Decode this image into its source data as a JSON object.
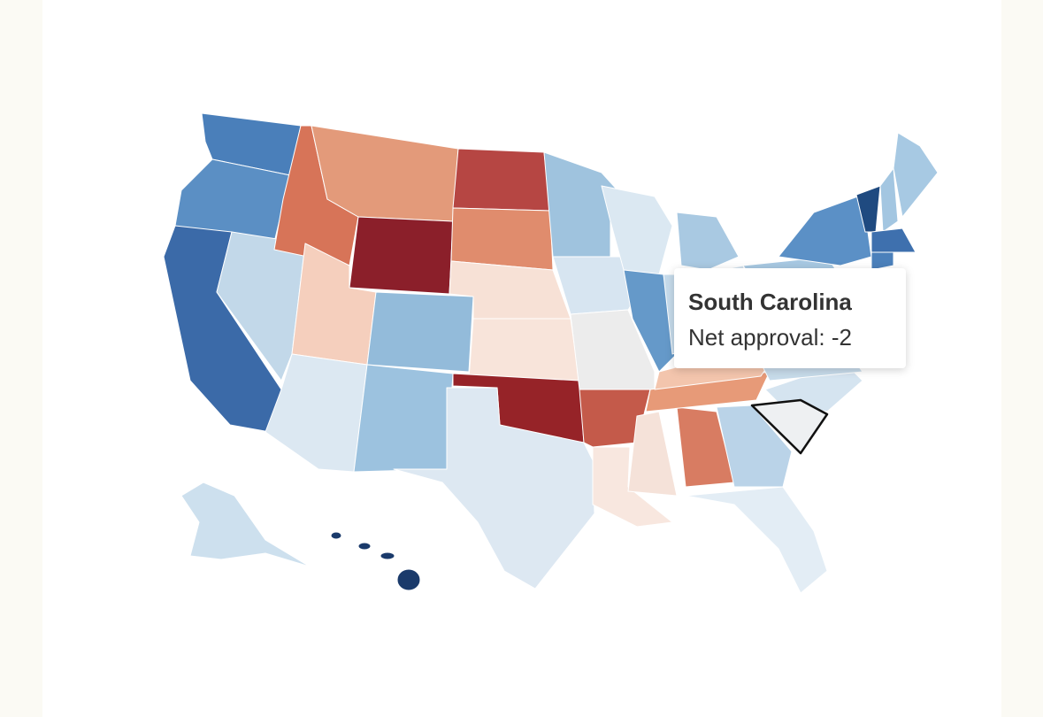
{
  "tooltip": {
    "title": "South Carolina",
    "text": "Net approval: -2"
  }
}
